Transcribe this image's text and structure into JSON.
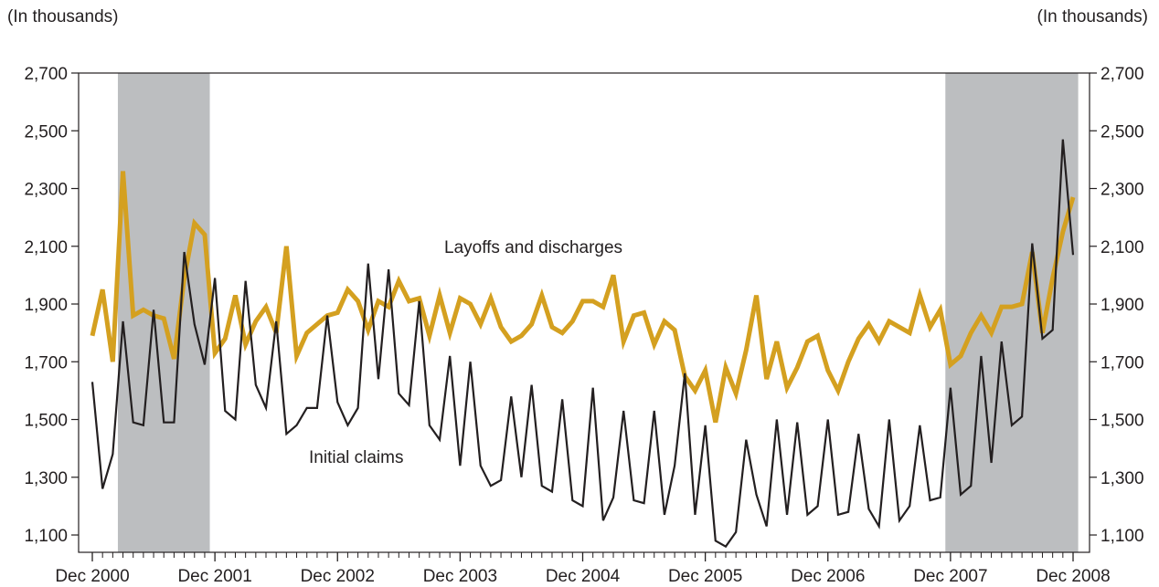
{
  "chart_data": {
    "type": "line",
    "left_unit_label": "(In thousands)",
    "right_unit_label": "(In thousands)",
    "y_ticks": [
      "1,100",
      "1,300",
      "1,500",
      "1,700",
      "1,900",
      "2,100",
      "2,300",
      "2,500",
      "2,700"
    ],
    "y_tick_values": [
      1100,
      1300,
      1500,
      1700,
      1900,
      2100,
      2300,
      2500,
      2700
    ],
    "ylim": [
      1040,
      2700
    ],
    "x_ticks": [
      "Dec 2000",
      "Dec 2001",
      "Dec 2002",
      "Dec 2003",
      "Dec 2004",
      "Dec 2005",
      "Dec 2006",
      "Dec 2007",
      "Dec 2008"
    ],
    "x_start": "2000-12",
    "x_end": "2008-12",
    "recessions": [
      {
        "start": "2001-03",
        "end": "2001-11"
      },
      {
        "start": "2007-12",
        "end": "2008-12"
      }
    ],
    "grid": false,
    "series": [
      {
        "name": "Layoffs and discharges",
        "color": "#d4a020",
        "values": [
          1790,
          1950,
          1700,
          2360,
          1860,
          1880,
          1860,
          1850,
          1710,
          1990,
          2180,
          2140,
          1730,
          1780,
          1930,
          1760,
          1840,
          1890,
          1800,
          2100,
          1720,
          1800,
          1830,
          1860,
          1870,
          1950,
          1910,
          1810,
          1910,
          1890,
          1980,
          1910,
          1920,
          1790,
          1930,
          1800,
          1920,
          1900,
          1830,
          1920,
          1820,
          1770,
          1790,
          1830,
          1930,
          1820,
          1800,
          1840,
          1910,
          1910,
          1890,
          2000,
          1770,
          1860,
          1870,
          1760,
          1840,
          1810,
          1650,
          1600,
          1670,
          1490,
          1680,
          1590,
          1740,
          1930,
          1640,
          1770,
          1610,
          1680,
          1770,
          1790,
          1670,
          1600,
          1700,
          1780,
          1830,
          1770,
          1840,
          1820,
          1800,
          1930,
          1820,
          1880,
          1690,
          1720,
          1800,
          1860,
          1800,
          1890,
          1890,
          1900,
          2080,
          1800,
          1990,
          2150,
          2270
        ]
      },
      {
        "name": "Initial claims",
        "color": "#231f20",
        "values": [
          1630,
          1260,
          1380,
          1840,
          1490,
          1480,
          1880,
          1490,
          1490,
          2080,
          1830,
          1690,
          1990,
          1530,
          1500,
          1980,
          1620,
          1540,
          1840,
          1450,
          1480,
          1540,
          1540,
          1860,
          1560,
          1480,
          1540,
          2040,
          1640,
          2020,
          1590,
          1550,
          1910,
          1480,
          1430,
          1720,
          1340,
          1700,
          1340,
          1270,
          1290,
          1580,
          1300,
          1620,
          1270,
          1250,
          1570,
          1220,
          1200,
          1610,
          1150,
          1230,
          1530,
          1220,
          1210,
          1530,
          1170,
          1340,
          1660,
          1170,
          1480,
          1080,
          1060,
          1110,
          1430,
          1240,
          1130,
          1500,
          1170,
          1490,
          1170,
          1200,
          1500,
          1170,
          1180,
          1450,
          1190,
          1130,
          1500,
          1150,
          1200,
          1480,
          1220,
          1230,
          1610,
          1240,
          1270,
          1720,
          1350,
          1770,
          1480,
          1510,
          2110,
          1780,
          1810,
          2470,
          2070
        ]
      }
    ],
    "annotations": [
      {
        "text": "Layoffs and discharges",
        "series": 0
      },
      {
        "text": "Initial claims",
        "series": 1
      }
    ]
  }
}
